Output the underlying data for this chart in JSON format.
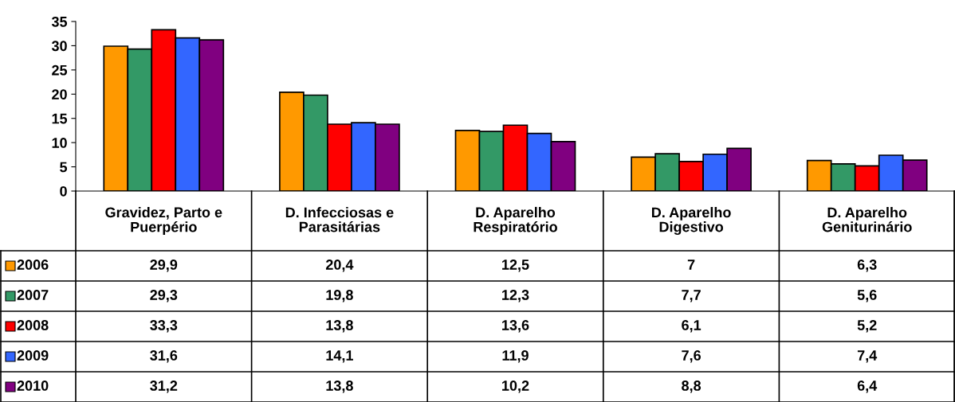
{
  "chart_data": {
    "type": "bar",
    "categories": [
      "Gravidez, Parto e\nPuerpério",
      "D. Infecciosas e\nParasitárias",
      "D. Aparelho\nRespiratório",
      "D. Aparelho\nDigestivo",
      "D. Aparelho\nGeniturinário"
    ],
    "series": [
      {
        "name": "2006",
        "color": "#ff9900",
        "values": [
          29.9,
          20.4,
          12.5,
          7,
          6.3
        ],
        "value_labels": [
          "29,9",
          "20,4",
          "12,5",
          "7",
          "6,3"
        ]
      },
      {
        "name": "2007",
        "color": "#339966",
        "values": [
          29.3,
          19.8,
          12.3,
          7.7,
          5.6
        ],
        "value_labels": [
          "29,3",
          "19,8",
          "12,3",
          "7,7",
          "5,6"
        ]
      },
      {
        "name": "2008",
        "color": "#ff0000",
        "values": [
          33.3,
          13.8,
          13.6,
          6.1,
          5.2
        ],
        "value_labels": [
          "33,3",
          "13,8",
          "13,6",
          "6,1",
          "5,2"
        ]
      },
      {
        "name": "2009",
        "color": "#3366ff",
        "values": [
          31.6,
          14.1,
          11.9,
          7.6,
          7.4
        ],
        "value_labels": [
          "31,6",
          "14,1",
          "11,9",
          "7,6",
          "7,4"
        ]
      },
      {
        "name": "2010",
        "color": "#800080",
        "values": [
          31.2,
          13.8,
          10.2,
          8.8,
          6.4
        ],
        "value_labels": [
          "31,2",
          "13,8",
          "10,2",
          "8,8",
          "6,4"
        ]
      }
    ],
    "ylim": [
      0,
      35
    ],
    "yticks": [
      0,
      5,
      10,
      15,
      20,
      25,
      30,
      35
    ],
    "grid": false,
    "legend": "bottom left"
  }
}
